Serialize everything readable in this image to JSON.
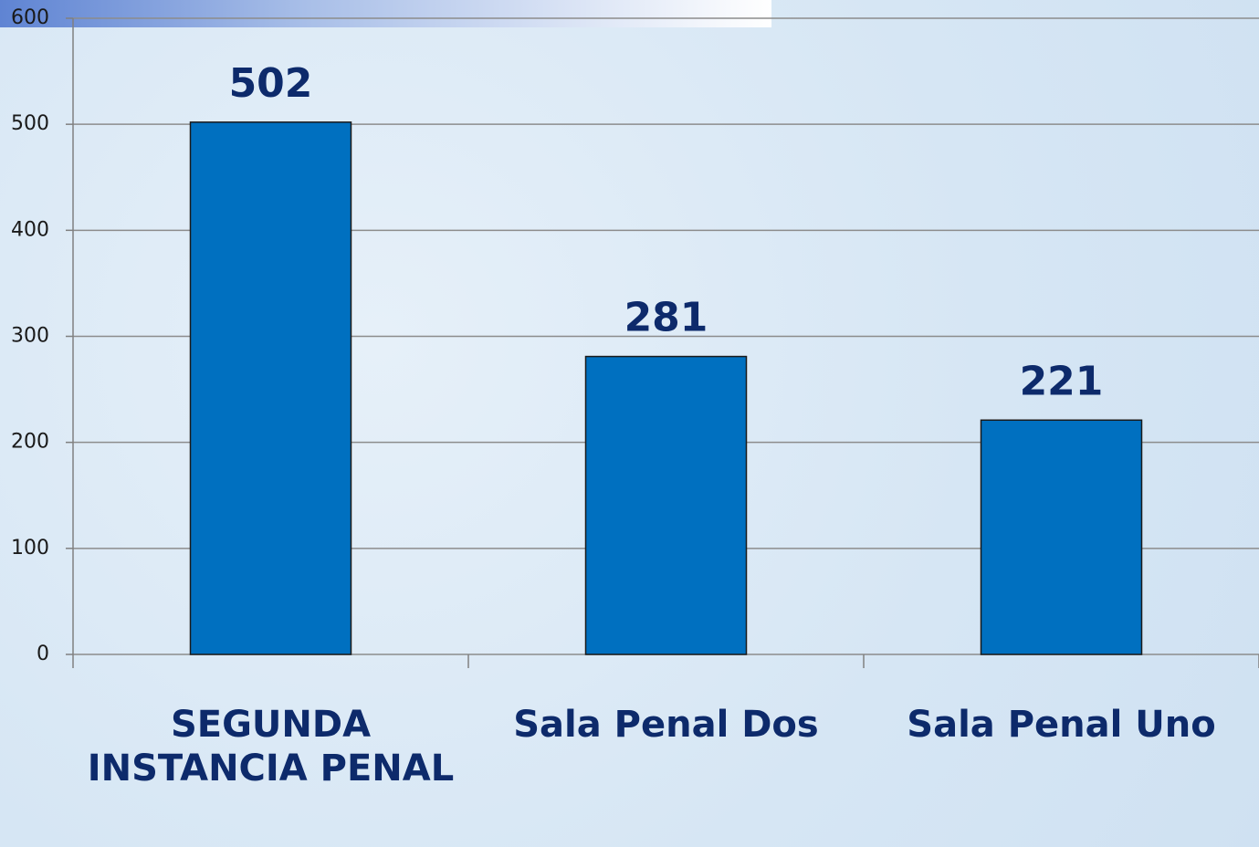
{
  "chart_data": {
    "type": "bar",
    "categories": [
      "SEGUNDA INSTANCIA PENAL",
      "Sala Penal Dos",
      "Sala Penal Uno"
    ],
    "values": [
      502,
      281,
      221
    ],
    "color": "#0070c0",
    "ylim": [
      0,
      600
    ],
    "yticks": [
      0,
      100,
      200,
      300,
      400,
      500,
      600
    ],
    "grid": true
  }
}
